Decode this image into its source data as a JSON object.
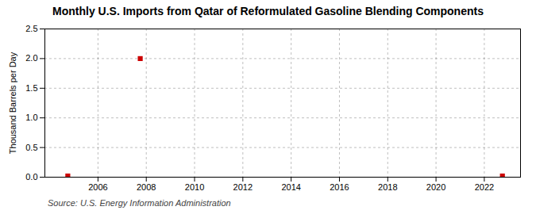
{
  "chart_data": {
    "type": "scatter",
    "title": "Monthly U.S. Imports from Qatar of Reformulated Gasoline Blending Components",
    "ylabel": "Thousand Barrels per Day",
    "source": "Source: U.S. Energy Information Administration",
    "x": [
      2004.75,
      2007.75,
      2022.75
    ],
    "values": [
      0.02,
      2.0,
      0.02
    ],
    "color": "#cc0000",
    "marker": "square",
    "xlim": [
      2003.8,
      2023.5
    ],
    "xticks": [
      2006,
      2008,
      2010,
      2012,
      2014,
      2016,
      2018,
      2020,
      2022
    ],
    "ylim": [
      0,
      2.5
    ],
    "yticks": [
      {
        "value": 0,
        "label": "0.0"
      },
      0.5,
      {
        "value": 1,
        "label": "1.0"
      },
      1.5,
      {
        "value": 2,
        "label": "2.0"
      },
      2.5
    ],
    "grid": true
  }
}
